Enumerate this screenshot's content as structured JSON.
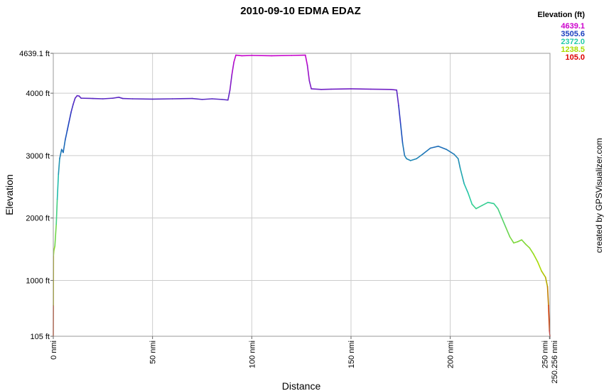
{
  "chart_data": {
    "type": "line",
    "title": "2010-09-10 EDMA EDAZ",
    "xlabel": "Distance",
    "ylabel": "Elevation",
    "xlim": [
      0,
      250.256
    ],
    "ylim": [
      105.0,
      4639.1
    ],
    "x_ticks": [
      {
        "value": 0,
        "label": "0 nmi"
      },
      {
        "value": 50,
        "label": "50 nmi"
      },
      {
        "value": 100,
        "label": "100 nmi"
      },
      {
        "value": 150,
        "label": "150 nmi"
      },
      {
        "value": 200,
        "label": "200 nmi"
      },
      {
        "value": 250,
        "label": "250 nmi"
      },
      {
        "value": 250.256,
        "label": "250.256 nmi"
      }
    ],
    "y_ticks": [
      {
        "value": 105.0,
        "label": "105 ft"
      },
      {
        "value": 1000,
        "label": "1000 ft"
      },
      {
        "value": 2000,
        "label": "2000 ft"
      },
      {
        "value": 3000,
        "label": "3000 ft"
      },
      {
        "value": 4000,
        "label": "4000 ft"
      },
      {
        "value": 4639.1,
        "label": "4639.1 ft"
      }
    ],
    "grid": true,
    "legend": {
      "title": "Elevation (ft)",
      "placement": "top-right",
      "entries": [
        {
          "label": "4639.1",
          "color": "#cc00cc"
        },
        {
          "label": "3505.6",
          "color": "#1a3fbf"
        },
        {
          "label": "2372.0",
          "color": "#22ccaa"
        },
        {
          "label": "1238.5",
          "color": "#aadd00"
        },
        {
          "label": "105.0",
          "color": "#dd0000"
        }
      ]
    },
    "color_scale": [
      "#dd0000",
      "#aadd00",
      "#22ccaa",
      "#1a3fbf",
      "#cc00cc"
    ],
    "series": [
      {
        "points": [
          [
            0,
            105
          ],
          [
            0.05,
            600
          ],
          [
            0.1,
            1400
          ],
          [
            0.3,
            1480
          ],
          [
            0.8,
            1550
          ],
          [
            1.5,
            1900
          ],
          [
            2,
            2300
          ],
          [
            2.6,
            2700
          ],
          [
            3.2,
            2950
          ],
          [
            4.2,
            3100
          ],
          [
            5,
            3050
          ],
          [
            6,
            3250
          ],
          [
            7,
            3400
          ],
          [
            8,
            3550
          ],
          [
            9,
            3700
          ],
          [
            10,
            3820
          ],
          [
            11,
            3920
          ],
          [
            12,
            3960
          ],
          [
            13,
            3955
          ],
          [
            14,
            3920
          ],
          [
            20,
            3915
          ],
          [
            25,
            3910
          ],
          [
            30,
            3920
          ],
          [
            33,
            3935
          ],
          [
            35,
            3915
          ],
          [
            40,
            3910
          ],
          [
            50,
            3905
          ],
          [
            60,
            3910
          ],
          [
            70,
            3915
          ],
          [
            75,
            3900
          ],
          [
            80,
            3910
          ],
          [
            85,
            3900
          ],
          [
            88,
            3890
          ],
          [
            89,
            4050
          ],
          [
            90,
            4300
          ],
          [
            91,
            4500
          ],
          [
            92,
            4610
          ],
          [
            95,
            4600
          ],
          [
            100,
            4605
          ],
          [
            110,
            4600
          ],
          [
            120,
            4605
          ],
          [
            127,
            4610
          ],
          [
            128,
            4450
          ],
          [
            129,
            4200
          ],
          [
            130,
            4070
          ],
          [
            135,
            4060
          ],
          [
            140,
            4065
          ],
          [
            150,
            4070
          ],
          [
            160,
            4065
          ],
          [
            170,
            4060
          ],
          [
            173,
            4050
          ],
          [
            174,
            3800
          ],
          [
            175,
            3500
          ],
          [
            176,
            3200
          ],
          [
            177,
            3000
          ],
          [
            178,
            2950
          ],
          [
            180,
            2920
          ],
          [
            183,
            2950
          ],
          [
            186,
            3020
          ],
          [
            190,
            3120
          ],
          [
            194,
            3150
          ],
          [
            198,
            3100
          ],
          [
            202,
            3020
          ],
          [
            204,
            2950
          ],
          [
            205,
            2800
          ],
          [
            207,
            2550
          ],
          [
            209,
            2400
          ],
          [
            211,
            2220
          ],
          [
            213,
            2150
          ],
          [
            216,
            2200
          ],
          [
            219,
            2250
          ],
          [
            222,
            2230
          ],
          [
            224,
            2150
          ],
          [
            226,
            2000
          ],
          [
            228,
            1850
          ],
          [
            230,
            1700
          ],
          [
            232,
            1600
          ],
          [
            234,
            1620
          ],
          [
            236,
            1650
          ],
          [
            238,
            1580
          ],
          [
            240,
            1520
          ],
          [
            242,
            1420
          ],
          [
            244,
            1300
          ],
          [
            246,
            1150
          ],
          [
            248,
            1050
          ],
          [
            249,
            900
          ],
          [
            249.5,
            600
          ],
          [
            250,
            200
          ],
          [
            250.256,
            105
          ]
        ]
      }
    ]
  },
  "credit": "created by GPSVisualizer.com"
}
